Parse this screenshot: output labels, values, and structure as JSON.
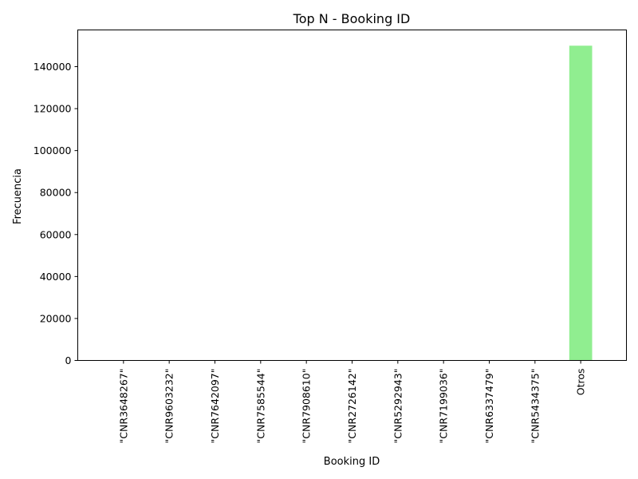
{
  "chart_data": {
    "type": "bar",
    "title": "Top N - Booking ID",
    "xlabel": "Booking ID",
    "ylabel": "Frecuencia",
    "categories": [
      "\"CNR3648267\"",
      "\"CNR9603232\"",
      "\"CNR7642097\"",
      "\"CNR7585544\"",
      "\"CNR7908610\"",
      "\"CNR2726142\"",
      "\"CNR5292943\"",
      "\"CNR7199036\"",
      "\"CNR6337479\"",
      "\"CNR5434375\"",
      "Otros"
    ],
    "values": [
      1,
      1,
      1,
      1,
      1,
      1,
      1,
      1,
      1,
      1,
      149990
    ],
    "ylim": [
      0,
      157500
    ],
    "yticks": [
      0,
      20000,
      40000,
      60000,
      80000,
      100000,
      120000,
      140000
    ],
    "bar_color": "#90ee90",
    "grid": false,
    "legend": "none"
  }
}
